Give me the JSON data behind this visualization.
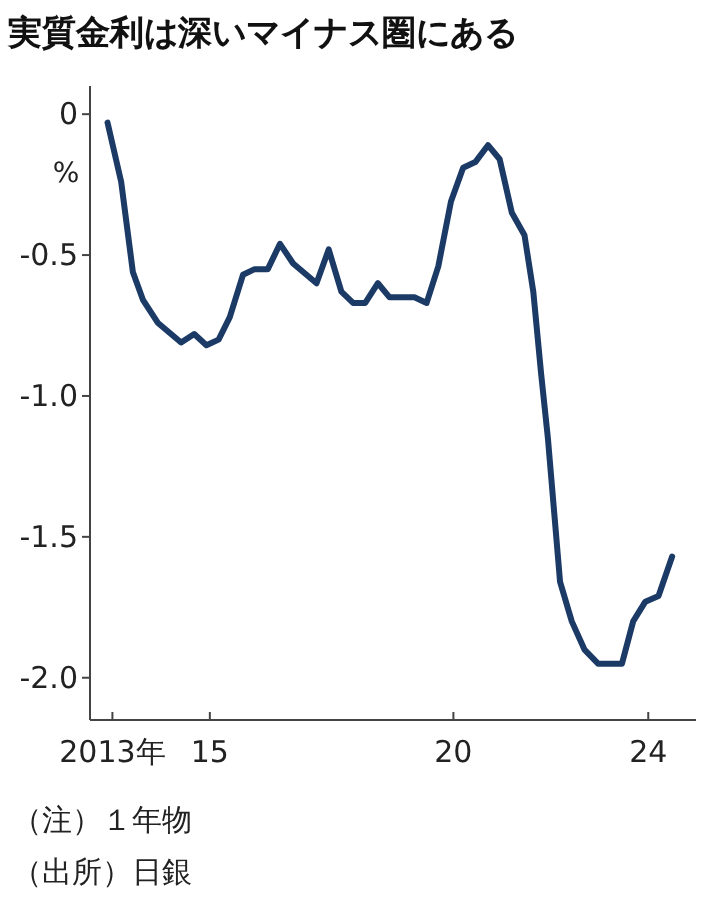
{
  "chart_data": {
    "type": "line",
    "title": "実質金利は深いマイナス圏にある",
    "ylabel": "%",
    "x": [
      2012.9,
      2013.18,
      2013.42,
      2013.63,
      2013.93,
      2014.41,
      2014.68,
      2014.93,
      2015.18,
      2015.41,
      2015.68,
      2015.92,
      2016.19,
      2016.44,
      2016.71,
      2017.19,
      2017.44,
      2017.7,
      2017.94,
      2018.19,
      2018.45,
      2018.69,
      2019.2,
      2019.45,
      2019.69,
      2019.95,
      2020.2,
      2020.45,
      2020.71,
      2020.95,
      2021.2,
      2021.46,
      2021.64,
      2021.8,
      2021.94,
      2022.19,
      2022.43,
      2022.69,
      2022.97,
      2023.46,
      2023.69,
      2023.94,
      2024.21,
      2024.49
    ],
    "series": [
      {
        "color": "#1c3a66",
        "values": [
          -0.03,
          -0.24,
          -0.56,
          -0.66,
          -0.74,
          -0.81,
          -0.78,
          -0.82,
          -0.8,
          -0.72,
          -0.57,
          -0.55,
          -0.55,
          -0.46,
          -0.53,
          -0.6,
          -0.48,
          -0.63,
          -0.67,
          -0.67,
          -0.6,
          -0.65,
          -0.65,
          -0.67,
          -0.54,
          -0.31,
          -0.19,
          -0.17,
          -0.11,
          -0.16,
          -0.35,
          -0.43,
          -0.63,
          -0.92,
          -1.15,
          -1.66,
          -1.8,
          -1.9,
          -1.95,
          -1.95,
          -1.8,
          -1.73,
          -1.71,
          -1.57
        ]
      }
    ],
    "xlim": [
      2012.54,
      2024.98
    ],
    "xticks": [
      {
        "value": 2013,
        "label": "2013年"
      },
      {
        "value": 2015,
        "label": "15"
      },
      {
        "value": 2020,
        "label": "20"
      },
      {
        "value": 2024,
        "label": "24"
      }
    ],
    "ylim": [
      -2.15,
      0.1
    ],
    "yticks": [
      {
        "value": 0,
        "label": "0"
      },
      {
        "value": -0.5,
        "label": "-0.5"
      },
      {
        "value": -1.0,
        "label": "-1.0"
      },
      {
        "value": -1.5,
        "label": "-1.5"
      },
      {
        "value": -2.0,
        "label": "-2.0"
      }
    ],
    "grid": false,
    "marker": "none",
    "line_style": "solid",
    "annotations": [
      "（注）１年物",
      "（出所）日銀"
    ]
  }
}
